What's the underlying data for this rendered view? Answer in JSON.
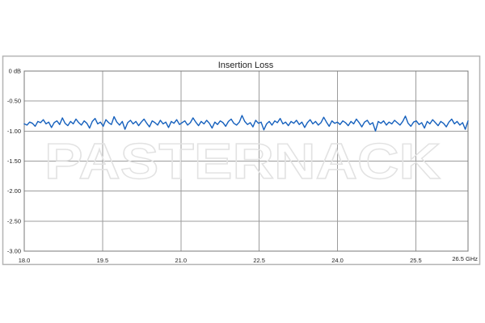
{
  "chart_data": {
    "type": "line",
    "title": "Insertion Loss",
    "watermark": "PASTERNACK",
    "xlabel": "",
    "ylabel": "dB",
    "xlim": [
      18.0,
      26.5
    ],
    "ylim": [
      -3.0,
      0.0
    ],
    "grid": true,
    "legend": "none",
    "x_ticks": [
      {
        "value": 18.0,
        "label": "18.0"
      },
      {
        "value": 19.5,
        "label": "19.5"
      },
      {
        "value": 21.0,
        "label": "21.0"
      },
      {
        "value": 22.5,
        "label": "22.5"
      },
      {
        "value": 24.0,
        "label": "24.0"
      },
      {
        "value": 25.5,
        "label": "25.5"
      },
      {
        "value": 26.5,
        "label": "26.5 GHz",
        "align": "end"
      }
    ],
    "y_ticks": [
      {
        "value": 0.0,
        "label": "0 dB"
      },
      {
        "value": -0.5,
        "label": "-0.50"
      },
      {
        "value": -1.0,
        "label": "-1.00"
      },
      {
        "value": -1.5,
        "label": "-1.50"
      },
      {
        "value": -2.0,
        "label": "-2.00"
      },
      {
        "value": -2.5,
        "label": "-2.50"
      },
      {
        "value": -3.0,
        "label": "-3.00"
      }
    ],
    "series": [
      {
        "name": "insertion-loss-db",
        "color": "#1560bd",
        "x_start": 18.0,
        "x_end": 26.5,
        "values": [
          -0.88,
          -0.9,
          -0.85,
          -0.87,
          -0.92,
          -0.84,
          -0.86,
          -0.81,
          -0.88,
          -0.85,
          -0.94,
          -0.86,
          -0.83,
          -0.89,
          -0.78,
          -0.87,
          -0.91,
          -0.84,
          -0.88,
          -0.8,
          -0.86,
          -0.9,
          -0.83,
          -0.87,
          -0.95,
          -0.84,
          -0.79,
          -0.88,
          -0.85,
          -0.92,
          -0.81,
          -0.86,
          -0.89,
          -0.76,
          -0.85,
          -0.9,
          -0.84,
          -0.97,
          -0.86,
          -0.82,
          -0.88,
          -0.84,
          -0.91,
          -0.85,
          -0.8,
          -0.87,
          -0.93,
          -0.83,
          -0.86,
          -0.9,
          -0.82,
          -0.88,
          -0.85,
          -0.94,
          -0.84,
          -0.87,
          -0.81,
          -0.89,
          -0.86,
          -0.83,
          -0.9,
          -0.86,
          -0.78,
          -0.85,
          -0.91,
          -0.84,
          -0.88,
          -0.82,
          -0.87,
          -0.95,
          -0.85,
          -0.89,
          -0.83,
          -0.86,
          -0.92,
          -0.84,
          -0.8,
          -0.87,
          -0.9,
          -0.85,
          -0.74,
          -0.84,
          -0.89,
          -0.86,
          -0.93,
          -0.82,
          -0.87,
          -0.85,
          -0.98,
          -0.88,
          -0.84,
          -0.9,
          -0.83,
          -0.86,
          -0.79,
          -0.88,
          -0.85,
          -0.91,
          -0.84,
          -0.87,
          -0.82,
          -0.89,
          -0.85,
          -0.94,
          -0.86,
          -0.81,
          -0.88,
          -0.84,
          -0.9,
          -0.86,
          -0.77,
          -0.85,
          -0.92,
          -0.83,
          -0.87,
          -0.85,
          -0.89,
          -0.83,
          -0.86,
          -0.91,
          -0.84,
          -0.88,
          -0.8,
          -0.86,
          -0.93,
          -0.85,
          -0.82,
          -0.89,
          -0.86,
          -1.0,
          -0.84,
          -0.87,
          -0.83,
          -0.9,
          -0.85,
          -0.88,
          -0.82,
          -0.86,
          -0.9,
          -0.84,
          -0.75,
          -0.87,
          -0.92,
          -0.85,
          -0.83,
          -0.89,
          -0.86,
          -0.95,
          -0.84,
          -0.88,
          -0.81,
          -0.86,
          -0.91,
          -0.84,
          -0.87,
          -0.93,
          -0.85,
          -0.8,
          -0.88,
          -0.84,
          -0.9,
          -0.86,
          -0.97,
          -0.83
        ]
      }
    ],
    "colors": {
      "trace": "#1560bd",
      "gridline": "#9c9c9c",
      "plot_border": "#787878",
      "outer_frame": "#b4b4b4",
      "watermark_outline": "#e2e2e2",
      "text": "#1f1f1f"
    }
  }
}
